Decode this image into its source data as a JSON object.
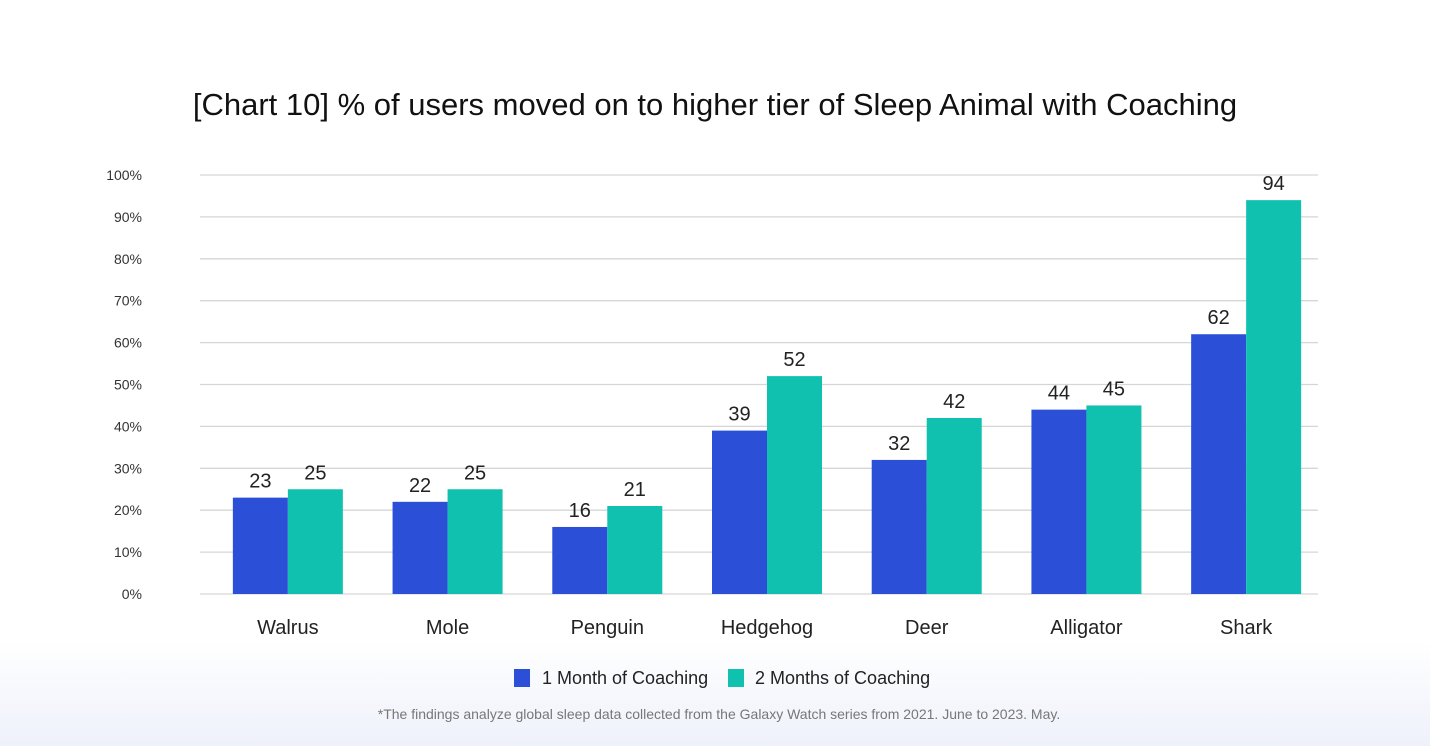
{
  "chart_data": {
    "type": "bar",
    "title": "[Chart 10] % of users moved on to higher tier of Sleep Animal with Coaching",
    "xlabel": "",
    "ylabel": "",
    "ylim": [
      0,
      100
    ],
    "yticks": [
      "0%",
      "10%",
      "20%",
      "30%",
      "40%",
      "50%",
      "60%",
      "70%",
      "80%",
      "90%",
      "100%"
    ],
    "grid": true,
    "legend_position": "bottom-center",
    "categories": [
      "Walrus",
      "Mole",
      "Penguin",
      "Hedgehog",
      "Deer",
      "Alligator",
      "Shark"
    ],
    "series": [
      {
        "name": "1 Month of Coaching",
        "color": "#2b4fd6",
        "values": [
          23,
          22,
          16,
          39,
          32,
          44,
          62
        ]
      },
      {
        "name": "2 Months of Coaching",
        "color": "#10c1b0",
        "values": [
          25,
          25,
          21,
          52,
          42,
          45,
          94
        ]
      }
    ],
    "footnote": "*The findings analyze global sleep data collected from the Galaxy Watch series from 2021. June to 2023. May."
  }
}
